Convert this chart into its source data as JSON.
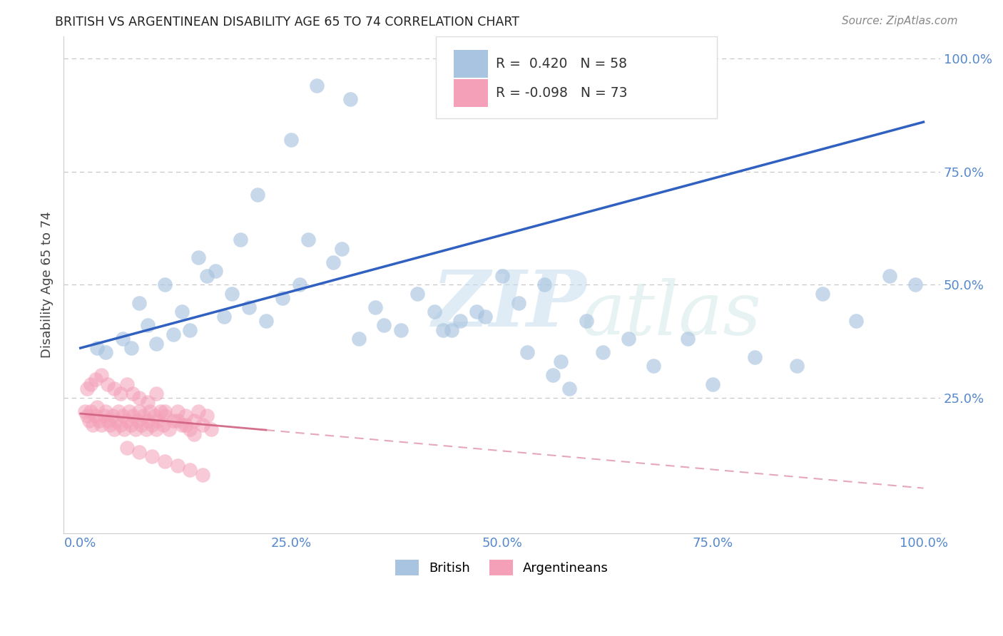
{
  "title": "BRITISH VS ARGENTINEAN DISABILITY AGE 65 TO 74 CORRELATION CHART",
  "source": "Source: ZipAtlas.com",
  "ylabel": "Disability Age 65 to 74",
  "xlim": [
    0.0,
    1.0
  ],
  "ylim": [
    0.0,
    1.0
  ],
  "xticks": [
    0.0,
    0.25,
    0.5,
    0.75,
    1.0
  ],
  "xticklabels": [
    "0.0%",
    "25.0%",
    "50.0%",
    "75.0%",
    "100.0%"
  ],
  "yticks": [
    0.25,
    0.5,
    0.75,
    1.0
  ],
  "yticklabels_right": [
    "25.0%",
    "50.0%",
    "75.0%",
    "100.0%"
  ],
  "R_british": 0.42,
  "N_british": 58,
  "R_argentinean": -0.098,
  "N_argentinean": 73,
  "british_color": "#a8c4e0",
  "argentinean_color": "#f4a0b8",
  "british_line_color": "#3060c0",
  "argentinean_line_color": "#d06080",
  "tick_color": "#5588cc",
  "background_color": "#ffffff",
  "watermark": "ZIPatlas",
  "british_line_y0": 0.36,
  "british_line_y1": 0.86,
  "argentinean_line_y0": 0.215,
  "argentinean_line_y1": 0.05,
  "british_x": [
    0.28,
    0.32,
    0.25,
    0.21,
    0.19,
    0.14,
    0.16,
    0.1,
    0.07,
    0.12,
    0.08,
    0.05,
    0.03,
    0.02,
    0.15,
    0.18,
    0.22,
    0.13,
    0.2,
    0.24,
    0.17,
    0.11,
    0.09,
    0.06,
    0.26,
    0.3,
    0.35,
    0.4,
    0.45,
    0.5,
    0.42,
    0.38,
    0.33,
    0.36,
    0.48,
    0.55,
    0.52,
    0.6,
    0.65,
    0.44,
    0.47,
    0.53,
    0.56,
    0.58,
    0.62,
    0.68,
    0.72,
    0.75,
    0.8,
    0.85,
    0.88,
    0.92,
    0.96,
    0.99,
    0.27,
    0.31,
    0.43,
    0.57
  ],
  "british_y": [
    0.94,
    0.91,
    0.82,
    0.7,
    0.6,
    0.56,
    0.53,
    0.5,
    0.46,
    0.44,
    0.41,
    0.38,
    0.35,
    0.36,
    0.52,
    0.48,
    0.42,
    0.4,
    0.45,
    0.47,
    0.43,
    0.39,
    0.37,
    0.36,
    0.5,
    0.55,
    0.45,
    0.48,
    0.42,
    0.52,
    0.44,
    0.4,
    0.38,
    0.41,
    0.43,
    0.5,
    0.46,
    0.42,
    0.38,
    0.4,
    0.44,
    0.35,
    0.3,
    0.27,
    0.35,
    0.32,
    0.38,
    0.28,
    0.34,
    0.32,
    0.48,
    0.42,
    0.52,
    0.5,
    0.6,
    0.58,
    0.4,
    0.33
  ],
  "argentinean_x": [
    0.005,
    0.008,
    0.01,
    0.012,
    0.015,
    0.018,
    0.02,
    0.022,
    0.025,
    0.028,
    0.03,
    0.032,
    0.035,
    0.038,
    0.04,
    0.042,
    0.045,
    0.048,
    0.05,
    0.052,
    0.055,
    0.058,
    0.06,
    0.062,
    0.065,
    0.068,
    0.07,
    0.072,
    0.075,
    0.078,
    0.08,
    0.082,
    0.085,
    0.088,
    0.09,
    0.092,
    0.095,
    0.098,
    0.1,
    0.105,
    0.11,
    0.115,
    0.12,
    0.125,
    0.13,
    0.135,
    0.14,
    0.145,
    0.15,
    0.155,
    0.008,
    0.012,
    0.018,
    0.025,
    0.032,
    0.04,
    0.048,
    0.055,
    0.062,
    0.07,
    0.08,
    0.09,
    0.1,
    0.115,
    0.125,
    0.135,
    0.055,
    0.07,
    0.085,
    0.1,
    0.115,
    0.13,
    0.145
  ],
  "argentinean_y": [
    0.22,
    0.21,
    0.2,
    0.22,
    0.19,
    0.21,
    0.23,
    0.2,
    0.19,
    0.21,
    0.22,
    0.2,
    0.19,
    0.21,
    0.18,
    0.2,
    0.22,
    0.19,
    0.21,
    0.18,
    0.2,
    0.22,
    0.19,
    0.21,
    0.18,
    0.2,
    0.22,
    0.19,
    0.21,
    0.18,
    0.2,
    0.22,
    0.19,
    0.21,
    0.18,
    0.2,
    0.22,
    0.19,
    0.21,
    0.18,
    0.2,
    0.22,
    0.19,
    0.21,
    0.18,
    0.2,
    0.22,
    0.19,
    0.21,
    0.18,
    0.27,
    0.28,
    0.29,
    0.3,
    0.28,
    0.27,
    0.26,
    0.28,
    0.26,
    0.25,
    0.24,
    0.26,
    0.22,
    0.2,
    0.19,
    0.17,
    0.14,
    0.13,
    0.12,
    0.11,
    0.1,
    0.09,
    0.08
  ]
}
